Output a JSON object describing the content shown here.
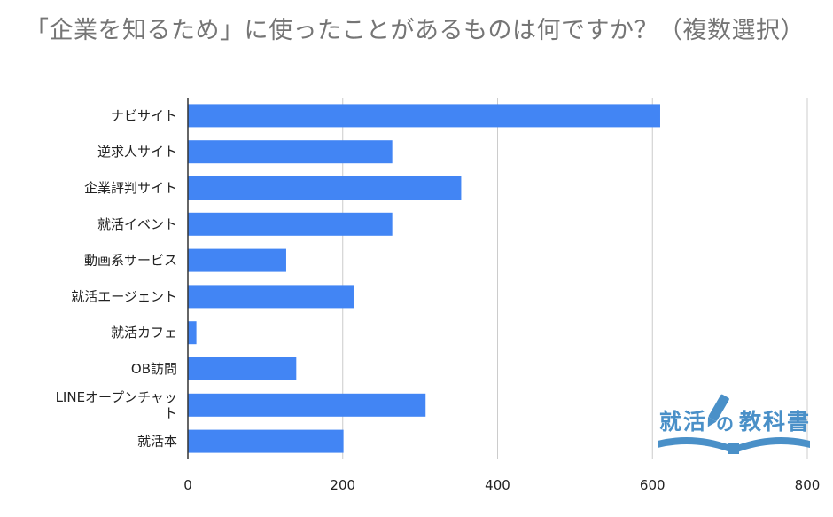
{
  "chart_data": {
    "type": "bar",
    "orientation": "horizontal",
    "title": "「企業を知るため」に使ったことがあるものは何ですか？（複数選択）",
    "categories": [
      "ナビサイト",
      "逆求人サイト",
      "企業評判サイト",
      "就活イベント",
      "動画系サービス",
      "就活エージェント",
      "就活カフェ",
      "OB訪問",
      "LINEオープンチャット",
      "就活本"
    ],
    "category_lines": [
      [
        "ナビサイト"
      ],
      [
        "逆求人サイト"
      ],
      [
        "企業評判サイト"
      ],
      [
        "就活イベント"
      ],
      [
        "動画系サービス"
      ],
      [
        "就活エージェント"
      ],
      [
        "就活カフェ"
      ],
      [
        "OB訪問"
      ],
      [
        "LINEオープンチャッ",
        "ト"
      ],
      [
        "就活本"
      ]
    ],
    "values": [
      610,
      264,
      353,
      264,
      127,
      214,
      11,
      140,
      307,
      201
    ],
    "xlim": [
      0,
      800
    ],
    "xticks": [
      0,
      200,
      400,
      600,
      800
    ],
    "grid": true,
    "bar_color": "#4285f4",
    "grid_color": "#cccccc"
  },
  "watermark": {
    "left_text": "就活",
    "middle_text": "の",
    "right_text": "教科書",
    "color": "#4a90c8"
  }
}
